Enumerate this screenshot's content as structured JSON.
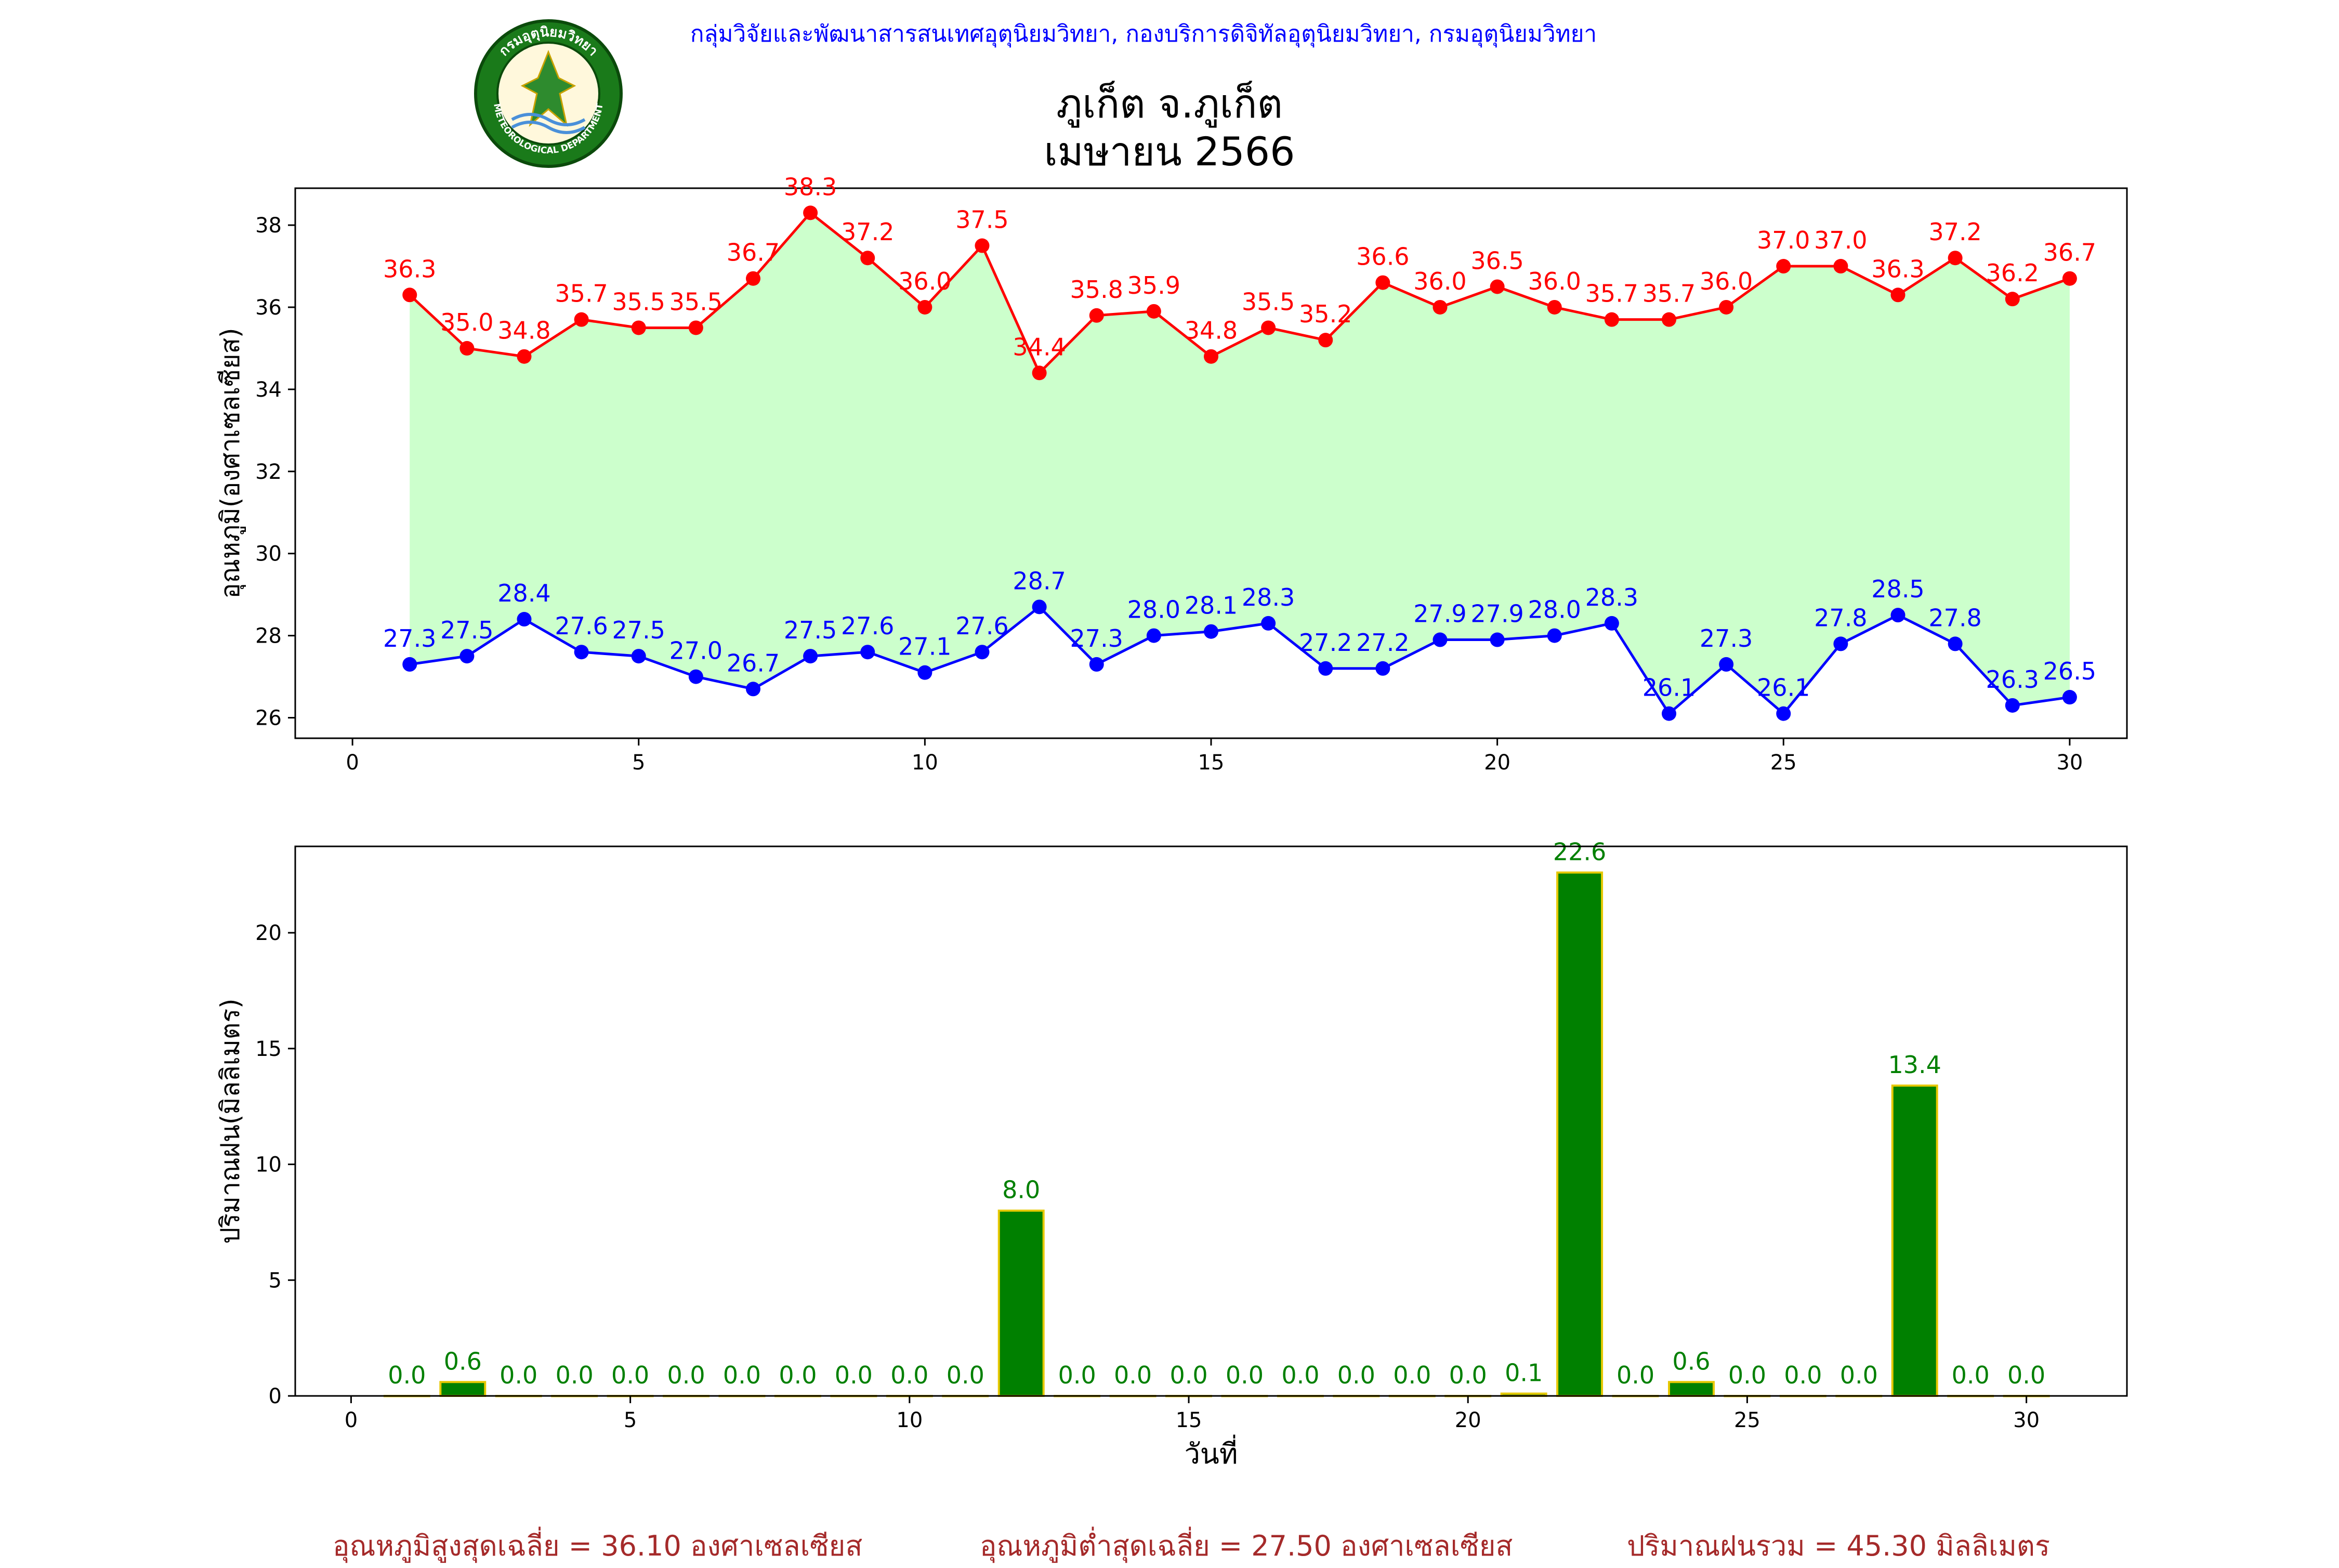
{
  "header": {
    "organization": "กลุ่มวิจัยและพัฒนาสารสนเทศอุตุนิยมวิทยา, กองบริการดิจิทัลอุตุนิยมวิทยา, กรมอุตุนิยมวิทยา",
    "title_line1": "ภูเก็ต จ.ภูเก็ต",
    "title_line2": "เมษายน 2566",
    "logo_text_top": "กรมอุตุนิยมวิทยา",
    "logo_text_bottom": "METEOROLOGICAL DEPARTMENT"
  },
  "colors": {
    "max_line": "#ff0000",
    "min_line": "#0000ff",
    "fill": "#ccffcc",
    "bar": "#008000",
    "bar_edge": "#e6c800",
    "bar_label": "#008000",
    "footer": "#a52a2a"
  },
  "chart_data": [
    {
      "type": "line",
      "ylabel": "อุณหภูมิ(องศาเซลเซียส)",
      "xlim": [
        -1,
        31
      ],
      "ylim": [
        25.5,
        38.9
      ],
      "x_ticks": [
        0,
        5,
        10,
        15,
        20,
        25,
        30
      ],
      "y_ticks": [
        26,
        28,
        30,
        32,
        34,
        36,
        38
      ],
      "x": [
        1,
        2,
        3,
        4,
        5,
        6,
        7,
        8,
        9,
        10,
        11,
        12,
        13,
        14,
        15,
        16,
        17,
        18,
        19,
        20,
        21,
        22,
        23,
        24,
        25,
        26,
        27,
        28,
        29,
        30
      ],
      "series": [
        {
          "values": [
            36.3,
            35.0,
            34.8,
            35.7,
            35.5,
            35.5,
            36.7,
            38.3,
            37.2,
            36.0,
            37.5,
            34.4,
            35.8,
            35.9,
            34.8,
            35.5,
            35.2,
            36.6,
            36.0,
            36.5,
            36.0,
            35.7,
            35.7,
            36.0,
            37.0,
            37.0,
            36.3,
            37.2,
            36.2,
            36.7
          ],
          "labels": [
            "36.3",
            "35.0",
            "34.8",
            "35.7",
            "35.5",
            "35.5",
            "36.7",
            "38.3",
            "37.2",
            "36.0",
            "37.5",
            "34.4",
            "35.8",
            "35.9",
            "34.8",
            "35.5",
            "35.2",
            "36.6",
            "36.0",
            "36.5",
            "36.0",
            "35.7",
            "35.7",
            "36.0",
            "37.0",
            "37.0",
            "36.3",
            "37.2",
            "36.2",
            "36.7"
          ]
        },
        {
          "values": [
            27.3,
            27.5,
            28.4,
            27.6,
            27.5,
            27.0,
            26.7,
            27.5,
            27.6,
            27.1,
            27.6,
            28.7,
            27.3,
            28.0,
            28.1,
            28.3,
            27.2,
            27.2,
            27.9,
            27.9,
            28.0,
            28.3,
            26.1,
            27.3,
            26.1,
            27.8,
            28.5,
            27.8,
            26.3,
            26.5
          ],
          "labels": [
            "27.3",
            "27.5",
            "28.4",
            "27.6",
            "27.5",
            "27.0",
            "26.7",
            "27.5",
            "27.6",
            "27.1",
            "27.6",
            "28.7",
            "27.3",
            "28.0",
            "28.1",
            "28.3",
            "27.2",
            "27.2",
            "27.9",
            "27.9",
            "28.0",
            "28.3",
            "26.1",
            "27.3",
            "26.1",
            "27.8",
            "28.5",
            "27.8",
            "26.3",
            "26.5"
          ]
        }
      ]
    },
    {
      "type": "bar",
      "xlabel": "วันที่",
      "ylabel": "ปริมาณฝน(มิลลิเมตร)",
      "xlim": [
        -1,
        31.8
      ],
      "ylim": [
        0,
        23.73
      ],
      "x_ticks": [
        0,
        5,
        10,
        15,
        20,
        25,
        30
      ],
      "y_ticks": [
        0,
        5,
        10,
        15,
        20
      ],
      "x": [
        1,
        2,
        3,
        4,
        5,
        6,
        7,
        8,
        9,
        10,
        11,
        12,
        13,
        14,
        15,
        16,
        17,
        18,
        19,
        20,
        21,
        22,
        23,
        24,
        25,
        26,
        27,
        28,
        29,
        30
      ],
      "values": [
        0.0,
        0.6,
        0.0,
        0.0,
        0.0,
        0.0,
        0.0,
        0.0,
        0.0,
        0.0,
        0.0,
        8.0,
        0.0,
        0.0,
        0.0,
        0.0,
        0.0,
        0.0,
        0.0,
        0.0,
        0.1,
        22.6,
        0.0,
        0.6,
        0.0,
        0.0,
        0.0,
        13.4,
        0.0,
        0.0
      ],
      "labels": [
        "0.0",
        "0.6",
        "0.0",
        "0.0",
        "0.0",
        "0.0",
        "0.0",
        "0.0",
        "0.0",
        "0.0",
        "0.0",
        "8.0",
        "0.0",
        "0.0",
        "0.0",
        "0.0",
        "0.0",
        "0.0",
        "0.0",
        "0.0",
        "0.1",
        "22.6",
        "0.0",
        "0.6",
        "0.0",
        "0.0",
        "0.0",
        "13.4",
        "0.0",
        "0.0"
      ]
    }
  ],
  "footer": {
    "avg_max": "อุณหภูมิสูงสุดเฉลี่ย = 36.10 องศาเซลเซียส",
    "avg_min": "อุณหภูมิต่ำสุดเฉลี่ย = 27.50 องศาเซลเซียส",
    "total_rain": "ปริมาณฝนรวม = 45.30 มิลลิเมตร"
  }
}
